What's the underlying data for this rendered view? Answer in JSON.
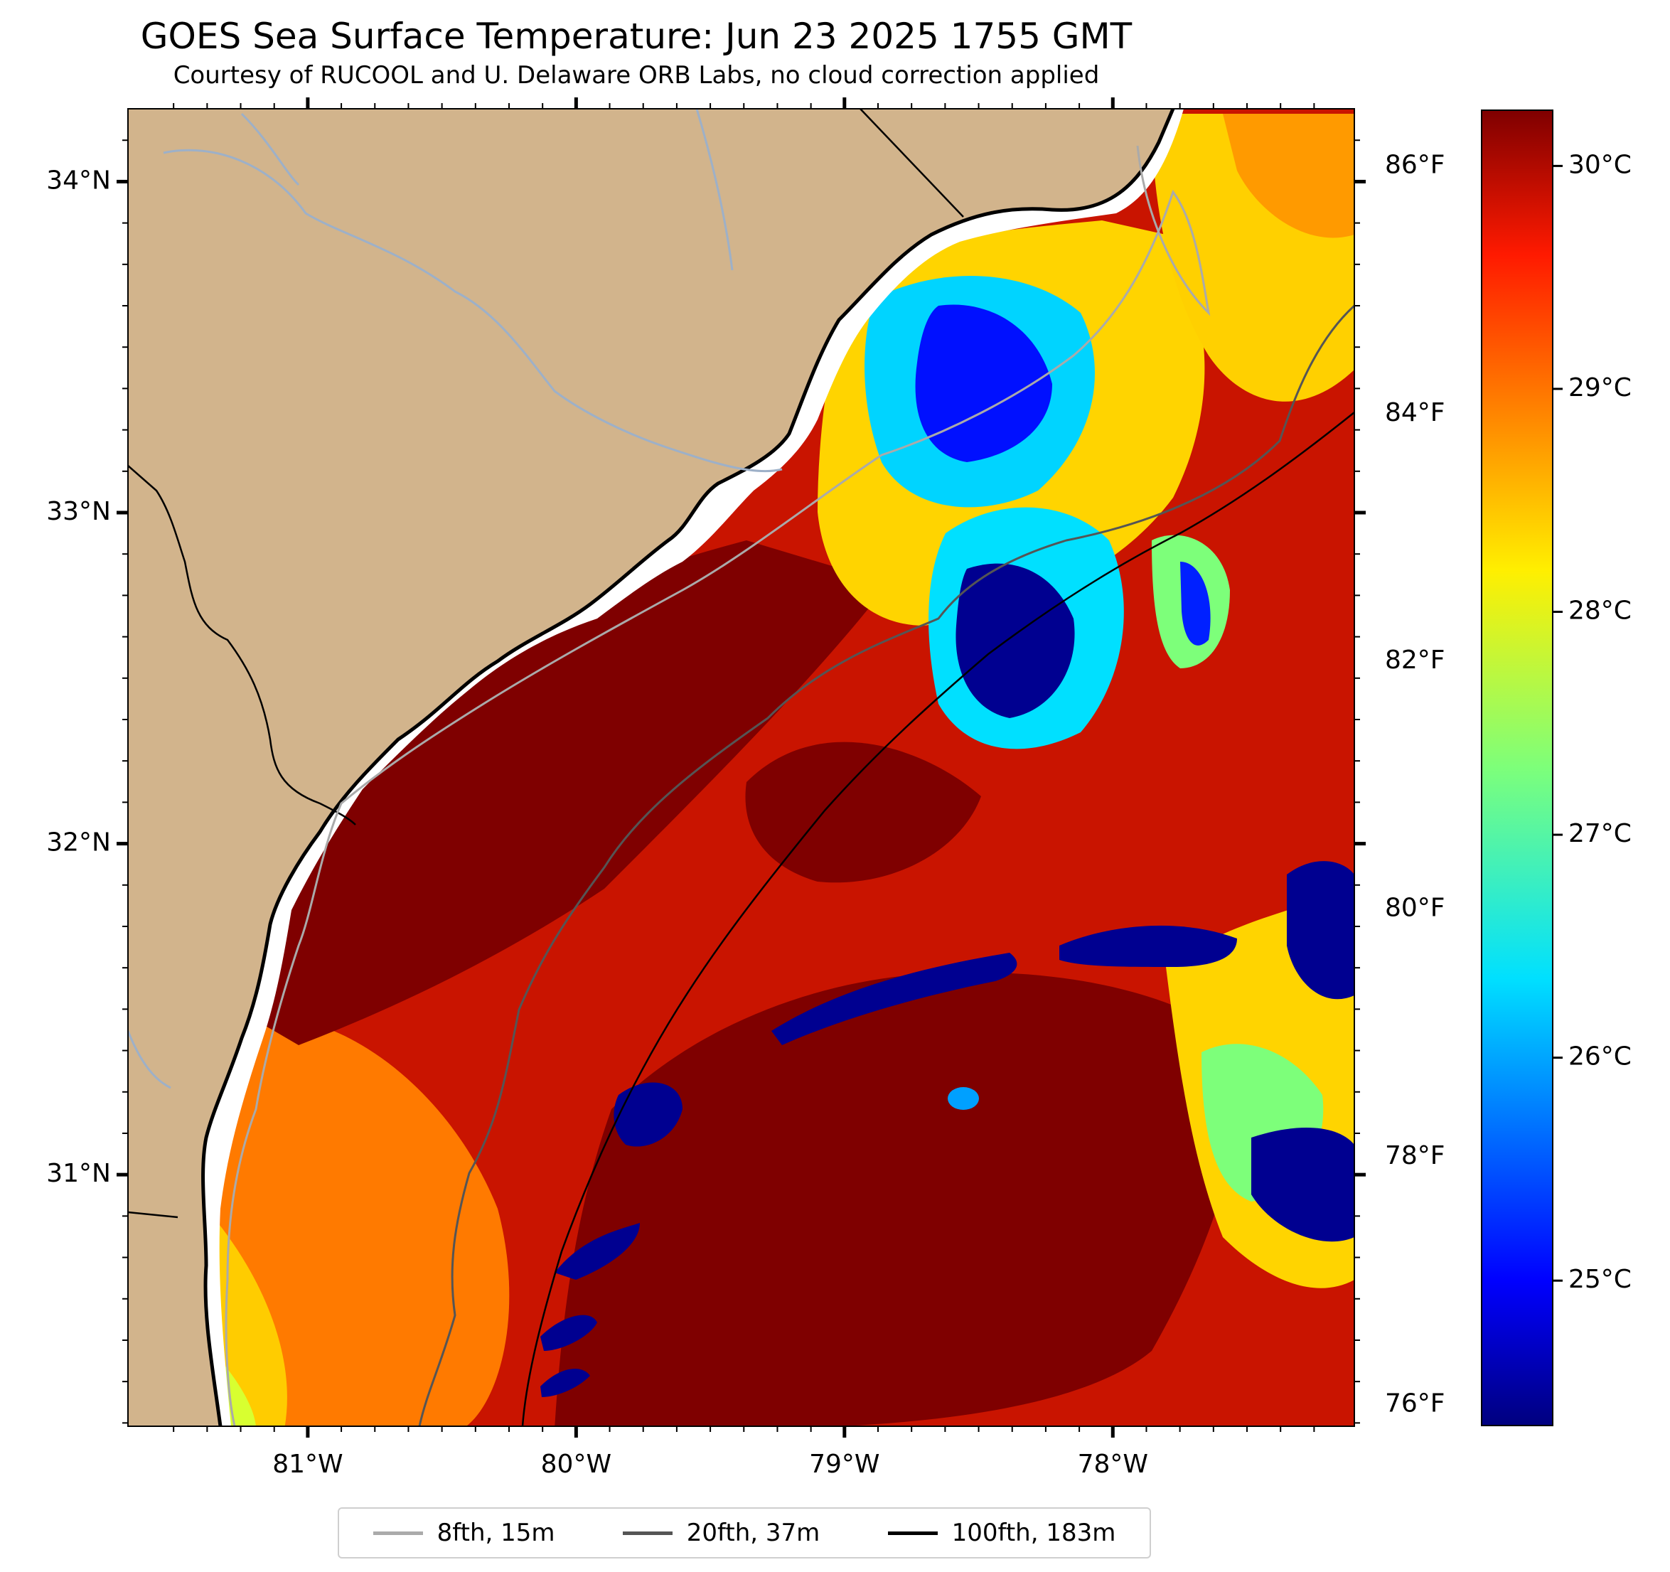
{
  "header": {
    "title": "GOES Sea Surface Temperature: Jun 23 2025 1755 GMT",
    "subtitle": "Courtesy of RUCOOL and U. Delaware ORB Labs, no cloud correction applied"
  },
  "map": {
    "lon_range": [
      -81.67,
      -77.1
    ],
    "lat_range": [
      30.24,
      34.22
    ],
    "lat_ticks": [
      {
        "value": 34,
        "label": "34°N"
      },
      {
        "value": 33,
        "label": "33°N"
      },
      {
        "value": 32,
        "label": "32°N"
      },
      {
        "value": 31,
        "label": "31°N"
      }
    ],
    "lon_ticks": [
      {
        "value": -81,
        "label": "81°W"
      },
      {
        "value": -80,
        "label": "80°W"
      },
      {
        "value": -79,
        "label": "79°W"
      },
      {
        "value": -78,
        "label": "78°W"
      }
    ],
    "land_color": "#d2b48c",
    "water_colors": {
      "warm": "#7f0000",
      "cold": "#00007f"
    }
  },
  "colorbar": {
    "colormap": "jet",
    "celsius_labels": [
      {
        "value": 30,
        "label": "30°C"
      },
      {
        "value": 29,
        "label": "29°C"
      },
      {
        "value": 28,
        "label": "28°C"
      },
      {
        "value": 27,
        "label": "27°C"
      },
      {
        "value": 26,
        "label": "26°C"
      },
      {
        "value": 25,
        "label": "25°C"
      }
    ],
    "fahrenheit_labels": [
      {
        "value": 86,
        "label": "86°F"
      },
      {
        "value": 84,
        "label": "84°F"
      },
      {
        "value": 82,
        "label": "82°F"
      },
      {
        "value": 80,
        "label": "80°F"
      },
      {
        "value": 78,
        "label": "78°F"
      },
      {
        "value": 76,
        "label": "76°F"
      }
    ]
  },
  "legend": {
    "items": [
      {
        "label": "8fth, 15m",
        "color": "#aaaaaa"
      },
      {
        "label": "20fth, 37m",
        "color": "#555555"
      },
      {
        "label": "100fth, 183m",
        "color": "#000000"
      }
    ]
  }
}
